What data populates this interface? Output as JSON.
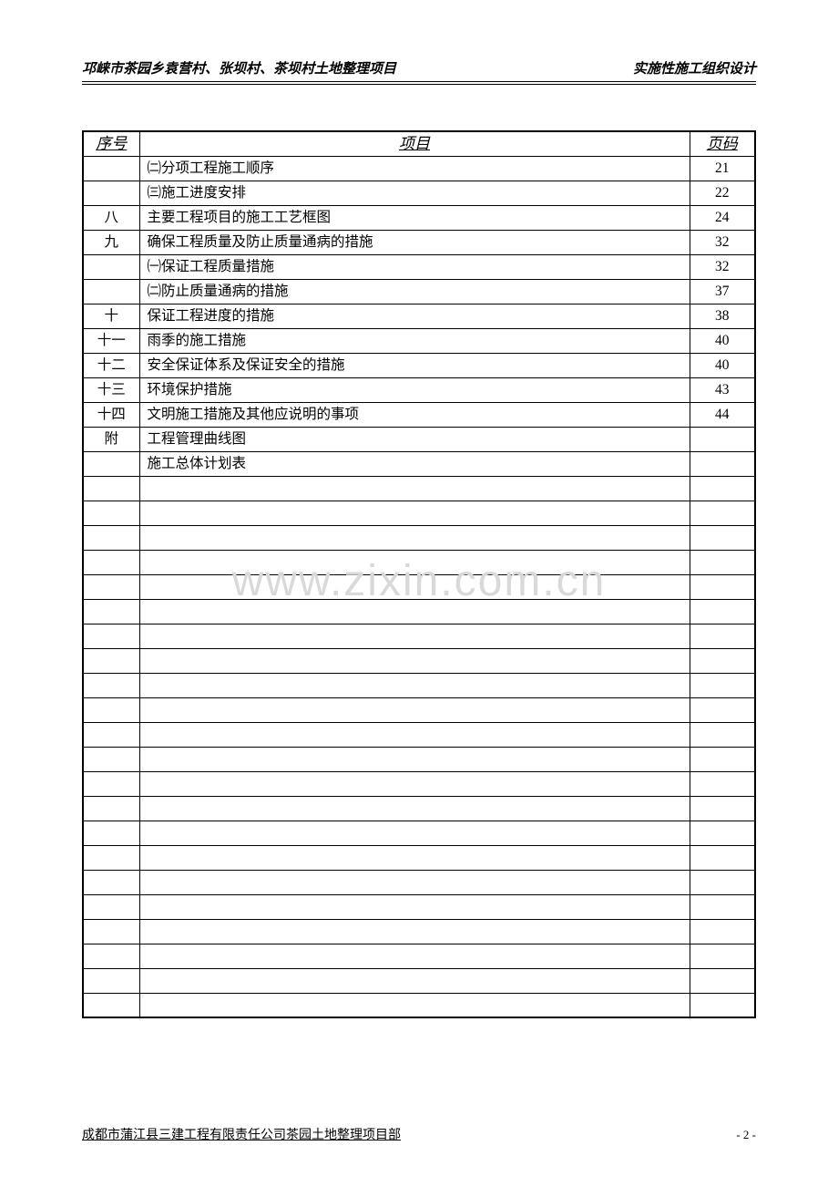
{
  "header": {
    "left": "邛崃市茶园乡袁营村、张坝村、茶坝村土地整理项目",
    "right": "实施性施工组织设计"
  },
  "table": {
    "columns": [
      "序号",
      "项目",
      "页码"
    ],
    "rows": [
      [
        "",
        "㈡分项工程施工顺序",
        "21"
      ],
      [
        "",
        "㈢施工进度安排",
        "22"
      ],
      [
        "八",
        "主要工程项目的施工工艺框图",
        "24"
      ],
      [
        "九",
        "确保工程质量及防止质量通病的措施",
        "32"
      ],
      [
        "",
        "㈠保证工程质量措施",
        "32"
      ],
      [
        "",
        "㈡防止质量通病的措施",
        "37"
      ],
      [
        "十",
        "保证工程进度的措施",
        "38"
      ],
      [
        "十一",
        "雨季的施工措施",
        "40"
      ],
      [
        "十二",
        "安全保证体系及保证安全的措施",
        "40"
      ],
      [
        "十三",
        "环境保护措施",
        "43"
      ],
      [
        "十四",
        "文明施工措施及其他应说明的事项",
        "44"
      ],
      [
        "附",
        "工程管理曲线图",
        ""
      ],
      [
        "",
        "施工总体计划表",
        ""
      ]
    ],
    "tall_row_indices": [
      8
    ],
    "empty_rows": 22
  },
  "watermark": "www.zixin.com.cn",
  "footer": {
    "org": "成都市蒲江县三建工程有限责任公司茶园土地整理项目部",
    "page": "- 2 -"
  }
}
